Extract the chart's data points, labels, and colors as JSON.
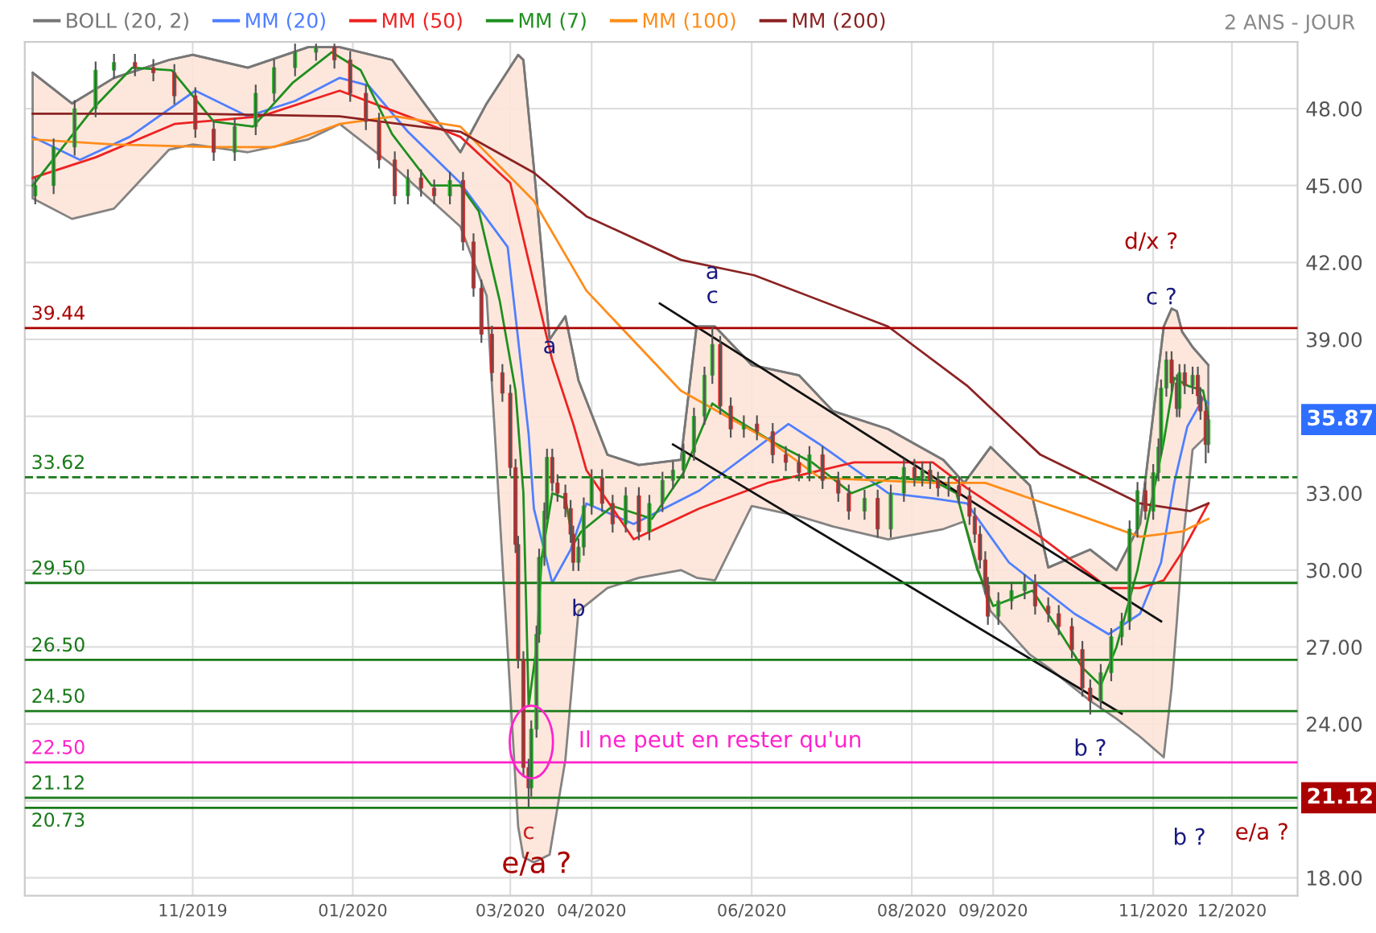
{
  "chart_data": {
    "type": "candlestick",
    "x": [
      "2019-09-02",
      "2019-09-09",
      "2019-09-17",
      "2019-09-25",
      "2019-10-02",
      "2019-10-10",
      "2019-10-17",
      "2019-10-25",
      "2019-11-02",
      "2019-11-09",
      "2019-11-17",
      "2019-11-25",
      "2019-12-02",
      "2019-12-10",
      "2019-12-18",
      "2019-12-25",
      "2019-12-31",
      "2020-01-06",
      "2020-01-11",
      "2020-01-17",
      "2020-01-22",
      "2020-01-27",
      "2020-02-01",
      "2020-02-07",
      "2020-02-12",
      "2020-02-16",
      "2020-02-19",
      "2020-02-23",
      "2020-02-27",
      "2020-03-01",
      "2020-03-03",
      "2020-03-04",
      "2020-03-06",
      "2020-03-08",
      "2020-03-09",
      "2020-03-11",
      "2020-03-12",
      "2020-03-14",
      "2020-03-15",
      "2020-03-17",
      "2020-03-19",
      "2020-03-22",
      "2020-03-24",
      "2020-03-25",
      "2020-03-27",
      "2020-03-29",
      "2020-04-01",
      "2020-04-05",
      "2020-04-09",
      "2020-04-14",
      "2020-04-19",
      "2020-04-23",
      "2020-04-28",
      "2020-05-02",
      "2020-05-06",
      "2020-05-10",
      "2020-05-14",
      "2020-05-17",
      "2020-05-20",
      "2020-05-24",
      "2020-05-29",
      "2020-06-03",
      "2020-06-09",
      "2020-06-14",
      "2020-06-19",
      "2020-06-23",
      "2020-06-28",
      "2020-07-04",
      "2020-07-08",
      "2020-07-14",
      "2020-07-19",
      "2020-07-24",
      "2020-07-29",
      "2020-08-02",
      "2020-08-05",
      "2020-08-08",
      "2020-08-11",
      "2020-08-15",
      "2020-08-19",
      "2020-08-23",
      "2020-08-25",
      "2020-08-27",
      "2020-08-29",
      "2020-08-30",
      "2020-09-03",
      "2020-09-08",
      "2020-09-13",
      "2020-09-17",
      "2020-09-22",
      "2020-09-26",
      "2020-10-01",
      "2020-10-05",
      "2020-10-08",
      "2020-10-12",
      "2020-10-16",
      "2020-10-20",
      "2020-10-23",
      "2020-10-26",
      "2020-10-29",
      "2020-11-01",
      "2020-11-03",
      "2020-11-04",
      "2020-11-06",
      "2020-11-08",
      "2020-11-10",
      "2020-11-11",
      "2020-11-13",
      "2020-11-16",
      "2020-11-18",
      "2020-11-19",
      "2020-11-21",
      "2020-11-22"
    ],
    "ohlc": [
      [
        44.6,
        45.3,
        44.3,
        45.0
      ],
      [
        45.0,
        46.8,
        44.7,
        46.5
      ],
      [
        46.5,
        48.3,
        46.2,
        48.0
      ],
      [
        48.0,
        49.8,
        47.7,
        49.5
      ],
      [
        49.5,
        50.1,
        49.2,
        49.8
      ],
      [
        49.8,
        50.1,
        49.3,
        49.6
      ],
      [
        49.6,
        49.9,
        49.1,
        49.4
      ],
      [
        49.4,
        49.7,
        48.2,
        48.5
      ],
      [
        48.5,
        48.8,
        46.9,
        47.2
      ],
      [
        47.2,
        47.5,
        46.0,
        46.3
      ],
      [
        46.3,
        47.6,
        46.0,
        47.3
      ],
      [
        47.3,
        48.9,
        47.0,
        48.6
      ],
      [
        48.6,
        49.9,
        48.3,
        49.6
      ],
      [
        49.6,
        50.5,
        49.3,
        50.2
      ],
      [
        50.2,
        50.5,
        49.9,
        50.4
      ],
      [
        50.4,
        50.5,
        49.6,
        49.9
      ],
      [
        49.9,
        50.2,
        48.3,
        48.6
      ],
      [
        48.6,
        48.9,
        47.2,
        47.5
      ],
      [
        47.5,
        47.8,
        45.7,
        46.0
      ],
      [
        46.0,
        46.3,
        44.3,
        44.6
      ],
      [
        44.6,
        45.6,
        44.3,
        45.3
      ],
      [
        45.3,
        45.6,
        44.6,
        44.9
      ],
      [
        44.9,
        45.2,
        44.3,
        44.6
      ],
      [
        44.6,
        45.5,
        44.3,
        45.2
      ],
      [
        45.2,
        45.5,
        42.5,
        42.8
      ],
      [
        42.8,
        43.1,
        40.7,
        41.0
      ],
      [
        41.0,
        41.3,
        38.9,
        39.2
      ],
      [
        39.2,
        39.5,
        37.4,
        37.7
      ],
      [
        37.7,
        38.0,
        36.6,
        36.9
      ],
      [
        36.9,
        37.2,
        33.7,
        34.0
      ],
      [
        34.0,
        34.3,
        30.7,
        31.0
      ],
      [
        31.0,
        31.3,
        26.2,
        26.5
      ],
      [
        26.5,
        26.8,
        22.0,
        22.3
      ],
      [
        22.3,
        22.6,
        20.8,
        21.5
      ],
      [
        21.5,
        24.1,
        21.2,
        23.8
      ],
      [
        23.8,
        27.8,
        23.5,
        27.5
      ],
      [
        27.5,
        30.8,
        27.2,
        30.5
      ],
      [
        30.5,
        32.6,
        30.2,
        32.3
      ],
      [
        32.3,
        34.7,
        32.0,
        34.4
      ],
      [
        34.4,
        34.7,
        33.1,
        33.4
      ],
      [
        33.4,
        33.7,
        32.7,
        33.0
      ],
      [
        33.0,
        33.3,
        32.1,
        32.4
      ],
      [
        32.4,
        32.7,
        31.1,
        31.4
      ],
      [
        31.4,
        31.7,
        30.0,
        30.3
      ],
      [
        30.3,
        31.2,
        30.0,
        30.9
      ],
      [
        30.9,
        32.8,
        30.6,
        32.5
      ],
      [
        32.5,
        33.9,
        32.2,
        33.6
      ],
      [
        33.6,
        33.9,
        32.3,
        32.6
      ],
      [
        32.6,
        32.9,
        31.5,
        31.8
      ],
      [
        31.8,
        33.2,
        31.5,
        32.9
      ],
      [
        32.9,
        33.2,
        31.2,
        31.5
      ],
      [
        31.5,
        32.9,
        31.2,
        32.6
      ],
      [
        32.6,
        33.8,
        32.3,
        33.5
      ],
      [
        33.5,
        34.2,
        33.2,
        33.9
      ],
      [
        33.9,
        34.9,
        33.6,
        34.6
      ],
      [
        34.6,
        36.3,
        34.3,
        36.0
      ],
      [
        36.0,
        37.9,
        35.7,
        37.6
      ],
      [
        37.6,
        39.44,
        37.3,
        38.8
      ],
      [
        38.8,
        39.1,
        36.1,
        36.4
      ],
      [
        36.4,
        36.7,
        35.2,
        35.5
      ],
      [
        35.5,
        36.0,
        35.2,
        35.7
      ],
      [
        35.7,
        36.0,
        35.1,
        35.4
      ],
      [
        35.4,
        35.7,
        34.2,
        34.5
      ],
      [
        34.5,
        34.8,
        33.9,
        34.2
      ],
      [
        34.2,
        34.5,
        33.5,
        33.8
      ],
      [
        33.8,
        34.8,
        33.5,
        34.5
      ],
      [
        34.5,
        34.8,
        33.2,
        33.5
      ],
      [
        33.5,
        33.8,
        32.7,
        33.0
      ],
      [
        33.0,
        33.3,
        32.0,
        32.3
      ],
      [
        32.3,
        33.1,
        32.0,
        32.8
      ],
      [
        32.8,
        33.1,
        31.3,
        31.6
      ],
      [
        31.6,
        33.3,
        31.3,
        33.0
      ],
      [
        33.0,
        34.3,
        32.7,
        34.0
      ],
      [
        34.0,
        34.3,
        33.3,
        33.6
      ],
      [
        33.6,
        34.2,
        33.3,
        33.9
      ],
      [
        33.9,
        34.2,
        33.2,
        33.5
      ],
      [
        33.5,
        33.8,
        32.9,
        33.2
      ],
      [
        33.2,
        33.6,
        32.9,
        33.3
      ],
      [
        33.3,
        33.6,
        32.6,
        32.9
      ],
      [
        32.9,
        33.2,
        31.8,
        32.1
      ],
      [
        32.1,
        32.4,
        31.1,
        31.4
      ],
      [
        31.4,
        31.7,
        30.1,
        30.4
      ],
      [
        30.4,
        30.7,
        29.1,
        29.4
      ],
      [
        29.4,
        29.7,
        27.9,
        28.2
      ],
      [
        28.2,
        29.1,
        27.9,
        28.8
      ],
      [
        28.8,
        29.5,
        28.5,
        29.2
      ],
      [
        29.2,
        29.8,
        28.9,
        29.5
      ],
      [
        29.5,
        29.8,
        28.3,
        28.6
      ],
      [
        28.6,
        28.9,
        28.0,
        28.3
      ],
      [
        28.3,
        28.6,
        27.5,
        27.8
      ],
      [
        27.8,
        28.1,
        26.6,
        26.9
      ],
      [
        26.9,
        27.2,
        25.1,
        25.4
      ],
      [
        25.4,
        25.7,
        24.4,
        24.9
      ],
      [
        24.9,
        26.3,
        24.6,
        26.0
      ],
      [
        26.0,
        27.7,
        25.7,
        27.4
      ],
      [
        27.4,
        28.3,
        27.1,
        28.0
      ],
      [
        28.0,
        31.9,
        27.7,
        31.6
      ],
      [
        31.6,
        33.4,
        31.3,
        33.1
      ],
      [
        33.1,
        33.4,
        32.0,
        32.3
      ],
      [
        32.3,
        34.1,
        32.0,
        33.8
      ],
      [
        33.8,
        35.1,
        33.5,
        34.8
      ],
      [
        34.8,
        37.4,
        34.5,
        37.1
      ],
      [
        37.1,
        38.5,
        36.8,
        38.2
      ],
      [
        38.2,
        38.5,
        37.0,
        37.3
      ],
      [
        37.3,
        37.6,
        36.0,
        36.3
      ],
      [
        36.3,
        38.0,
        36.0,
        37.7
      ],
      [
        37.7,
        38.0,
        36.9,
        37.2
      ],
      [
        37.2,
        37.9,
        36.9,
        37.6
      ],
      [
        37.6,
        37.9,
        36.5,
        36.8
      ],
      [
        36.8,
        37.1,
        35.9,
        36.2
      ],
      [
        36.2,
        36.5,
        34.2,
        34.9
      ],
      [
        34.9,
        36.0,
        34.6,
        35.87
      ]
    ],
    "series": [
      {
        "name": "BOLL (20, 2)",
        "type": "line",
        "color": "#777777",
        "x": [
          "2019-09-01",
          "2019-09-16",
          "2019-10-02",
          "2019-10-23",
          "2019-11-01",
          "2019-11-22",
          "2019-12-15",
          "2019-12-27",
          "2020-01-16",
          "2020-02-11",
          "2020-02-21",
          "2020-03-04",
          "2020-03-06",
          "2020-03-10",
          "2020-03-16",
          "2020-03-22",
          "2020-03-27",
          "2020-04-07",
          "2020-04-19",
          "2020-05-05",
          "2020-05-11",
          "2020-05-18",
          "2020-06-01",
          "2020-06-19",
          "2020-07-02",
          "2020-07-23",
          "2020-08-13",
          "2020-08-21",
          "2020-08-31",
          "2020-09-15",
          "2020-09-22",
          "2020-10-08",
          "2020-10-18",
          "2020-10-27",
          "2020-11-05",
          "2020-11-08",
          "2020-11-10",
          "2020-11-12",
          "2020-11-16",
          "2020-11-22"
        ],
        "values": [
          49.4,
          48.2,
          49.2,
          49.9,
          50.1,
          49.6,
          50.4,
          50.4,
          49.9,
          46.3,
          48.2,
          50.1,
          49.9,
          45.7,
          39.0,
          39.9,
          37.4,
          34.5,
          34.1,
          34.3,
          39.5,
          39.5,
          38.0,
          37.6,
          36.2,
          35.5,
          34.3,
          33.4,
          34.8,
          33.3,
          30.1,
          30.8,
          30.0,
          31.8,
          39.5,
          40.2,
          40.1,
          39.3,
          38.7,
          38.0
        ],
        "upper": [
          49.4,
          48.2,
          49.2,
          49.9,
          50.1,
          49.6,
          50.4,
          50.4,
          49.9,
          46.3,
          48.2,
          50.1,
          49.9,
          45.7,
          39.0,
          39.9,
          37.4,
          34.5,
          34.1,
          34.3,
          39.5,
          39.5,
          38.0,
          37.6,
          36.2,
          35.5,
          34.3,
          33.4,
          34.8,
          33.3,
          30.1,
          30.8,
          30.0,
          31.8,
          39.5,
          40.2,
          40.1,
          39.3,
          38.7,
          38.0
        ],
        "lower": [
          44.5,
          43.7,
          44.1,
          46.4,
          46.6,
          46.3,
          46.8,
          47.4,
          45.8,
          43.4,
          40.7,
          20.0,
          18.8,
          18.6,
          18.9,
          22.6,
          28.4,
          29.3,
          29.7,
          30.0,
          29.7,
          29.6,
          32.5,
          32.1,
          31.7,
          31.2,
          31.6,
          31.9,
          28.4,
          26.7,
          26.2,
          24.9,
          24.2,
          23.5,
          22.7,
          25.4,
          28.0,
          30.8,
          34.7,
          35.3
        ]
      },
      {
        "name": "MM (20)",
        "type": "line",
        "color": "#4f7fff",
        "x": [
          "2019-09-01",
          "2019-09-19",
          "2019-10-08",
          "2019-11-02",
          "2019-11-22",
          "2019-12-10",
          "2019-12-27",
          "2020-01-07",
          "2020-01-22",
          "2020-02-11",
          "2020-02-29",
          "2020-03-04",
          "2020-03-08",
          "2020-03-10",
          "2020-03-17",
          "2020-03-24",
          "2020-03-30",
          "2020-04-17",
          "2020-05-12",
          "2020-06-15",
          "2020-06-27",
          "2020-07-23",
          "2020-08-09",
          "2020-08-22",
          "2020-09-07",
          "2020-10-02",
          "2020-10-15",
          "2020-10-27",
          "2020-11-04",
          "2020-11-09",
          "2020-11-14",
          "2020-11-20",
          "2020-11-22"
        ],
        "values": [
          46.9,
          46.0,
          46.9,
          48.7,
          47.7,
          48.3,
          49.2,
          48.9,
          47.1,
          45.1,
          42.6,
          39.0,
          35.3,
          32.4,
          29.5,
          30.8,
          32.6,
          31.8,
          33.1,
          35.7,
          34.9,
          33.0,
          32.8,
          32.6,
          30.3,
          28.3,
          27.5,
          28.3,
          30.3,
          33.4,
          35.6,
          36.7,
          36.5
        ]
      },
      {
        "name": "MM (50)",
        "type": "line",
        "color": "#ee2222",
        "x": [
          "2019-09-01",
          "2019-09-25",
          "2019-10-25",
          "2019-11-27",
          "2019-12-27",
          "2020-01-22",
          "2020-02-11",
          "2020-03-01",
          "2020-03-10",
          "2020-03-17",
          "2020-03-25",
          "2020-03-30",
          "2020-04-17",
          "2020-05-12",
          "2020-06-07",
          "2020-07-10",
          "2020-08-09",
          "2020-08-22",
          "2020-09-19",
          "2020-10-15",
          "2020-10-27",
          "2020-11-05",
          "2020-11-12",
          "2020-11-22"
        ],
        "values": [
          45.3,
          46.1,
          47.4,
          47.7,
          48.7,
          47.7,
          46.9,
          45.1,
          41.2,
          38.2,
          35.7,
          33.9,
          31.2,
          32.4,
          33.4,
          34.2,
          34.2,
          33.2,
          31.3,
          29.3,
          29.3,
          29.6,
          30.7,
          32.6
        ]
      },
      {
        "name": "MM (7)",
        "type": "line",
        "color": "#1f8f1f",
        "x": [
          "2019-09-01",
          "2019-09-24",
          "2019-10-09",
          "2019-10-24",
          "2019-11-09",
          "2019-11-24",
          "2019-12-09",
          "2019-12-24",
          "2020-01-04",
          "2020-01-16",
          "2020-01-31",
          "2020-02-11",
          "2020-02-18",
          "2020-02-26",
          "2020-03-03",
          "2020-03-06",
          "2020-03-08",
          "2020-03-11",
          "2020-03-13",
          "2020-03-17",
          "2020-03-22",
          "2020-03-25",
          "2020-03-28",
          "2020-04-09",
          "2020-04-24",
          "2020-05-06",
          "2020-05-17",
          "2020-05-24",
          "2020-06-09",
          "2020-06-24",
          "2020-07-09",
          "2020-07-24",
          "2020-08-09",
          "2020-08-18",
          "2020-08-26",
          "2020-09-01",
          "2020-09-16",
          "2020-09-27",
          "2020-10-05",
          "2020-10-12",
          "2020-10-18",
          "2020-10-26",
          "2020-11-01",
          "2020-11-05",
          "2020-11-09",
          "2020-11-14",
          "2020-11-20",
          "2020-11-22"
        ],
        "values": [
          45.0,
          48.0,
          49.6,
          49.5,
          47.5,
          47.3,
          49.0,
          50.2,
          49.5,
          47.0,
          45.0,
          45.0,
          44.0,
          40.5,
          37.0,
          33.0,
          24.7,
          27.0,
          30.5,
          33.0,
          32.8,
          31.0,
          31.5,
          32.5,
          32.0,
          33.8,
          36.5,
          36.0,
          35.0,
          34.2,
          33.0,
          33.6,
          33.5,
          33.0,
          30.0,
          28.6,
          29.2,
          27.5,
          26.2,
          25.5,
          27.0,
          30.0,
          33.0,
          35.0,
          37.5,
          37.2,
          37.0,
          36.0
        ]
      },
      {
        "name": "MM (100)",
        "type": "line",
        "color": "#ff8c1a",
        "x": [
          "2019-09-01",
          "2019-10-02",
          "2019-11-09",
          "2019-12-02",
          "2019-12-27",
          "2020-01-17",
          "2020-02-11",
          "2020-03-10",
          "2020-03-30",
          "2020-05-05",
          "2020-06-07",
          "2020-06-27",
          "2020-08-09",
          "2020-08-29",
          "2020-10-02",
          "2020-10-27",
          "2020-11-12",
          "2020-11-22"
        ],
        "values": [
          46.8,
          46.6,
          46.5,
          46.5,
          47.4,
          47.7,
          47.3,
          44.4,
          40.9,
          37.0,
          35.1,
          33.6,
          33.4,
          33.4,
          32.2,
          31.3,
          31.5,
          32.0
        ]
      },
      {
        "name": "MM (200)",
        "type": "line",
        "color": "#8b2323",
        "x": [
          "2019-09-01",
          "2019-11-01",
          "2019-12-27",
          "2020-02-11",
          "2020-03-10",
          "2020-03-30",
          "2020-05-05",
          "2020-06-02",
          "2020-07-23",
          "2020-08-22",
          "2020-09-19",
          "2020-10-27",
          "2020-11-15",
          "2020-11-22"
        ],
        "values": [
          47.8,
          47.8,
          47.7,
          47.1,
          45.5,
          43.8,
          42.1,
          41.5,
          39.5,
          37.2,
          34.5,
          32.6,
          32.3,
          32.6
        ]
      },
      {
        "type": "line",
        "color": "#111111",
        "x": [
          "2020-04-27",
          "2020-11-04"
        ],
        "values": [
          40.4,
          28.0
        ]
      },
      {
        "type": "line",
        "color": "#111111",
        "x": [
          "2020-05-02",
          "2020-10-20"
        ],
        "values": [
          34.9,
          24.4
        ]
      }
    ],
    "ref_lines": [
      {
        "axis": "y",
        "value": 39.44,
        "label": "39.44",
        "color": "#aa0000"
      },
      {
        "axis": "y",
        "value": 33.62,
        "label": "33.62",
        "color": "#1a7a1a",
        "line_style": "dashed"
      },
      {
        "axis": "y",
        "value": 29.5,
        "label": "29.50",
        "color": "#1a7a1a"
      },
      {
        "axis": "y",
        "value": 26.5,
        "label": "26.50",
        "color": "#1a7a1a"
      },
      {
        "axis": "y",
        "value": 24.5,
        "label": "24.50",
        "color": "#1a7a1a"
      },
      {
        "axis": "y",
        "value": 22.5,
        "label": "22.50",
        "color": "#ff22cc"
      },
      {
        "axis": "y",
        "value": 21.12,
        "label": "21.12",
        "color": "#1a7a1a"
      },
      {
        "axis": "y",
        "value": 20.73,
        "label": "20.73",
        "color": "#1a7a1a"
      }
    ],
    "annotations": [
      "2 ANS - JOUR",
      "35.87",
      "21.12",
      {
        "text": "a",
        "x": "2020-03-16",
        "y": 38.7
      },
      "b",
      {
        "text": "a",
        "x": "2020-05-17",
        "y": 41.6
      },
      {
        "text": "c",
        "x": "2020-05-17",
        "y": 39.44
      },
      {
        "text": "c",
        "x": "2020-03-08",
        "y": 20.8
      },
      {
        "text": "e/a ?",
        "x": "2020-03-11",
        "y": 18.5
      },
      "Il ne peut en rester qu'un",
      "d/x ?",
      "c ?",
      {
        "text": "b ?",
        "x": "2020-10-08",
        "y": 24.4
      },
      "b ?",
      "e/a ?"
    ],
    "xlim": [
      "2019-08-29",
      "2020-12-26"
    ],
    "xticks": [
      {
        "value": "2019-11-01",
        "label": "11/2019"
      },
      {
        "value": "2020-01-01",
        "label": "01/2020"
      },
      {
        "value": "2020-03-01",
        "label": "03/2020"
      },
      {
        "value": "2020-04-01",
        "label": "04/2020"
      },
      {
        "value": "2020-06-01",
        "label": "06/2020"
      },
      {
        "value": "2020-08-01",
        "label": "08/2020"
      },
      {
        "value": "2020-09-01",
        "label": "09/2020"
      },
      {
        "value": "2020-11-01",
        "label": "11/2020"
      },
      {
        "value": "2020-12-01",
        "label": "12/2020"
      }
    ],
    "ylim": [
      17.3,
      50.6
    ],
    "yticks": [
      {
        "value": 18,
        "label": "18.00"
      },
      {
        "value": 21,
        "label": null
      },
      {
        "value": 24,
        "label": "24.00"
      },
      {
        "value": 27,
        "label": "27.00"
      },
      {
        "value": 30,
        "label": "30.00"
      },
      {
        "value": 33,
        "label": "33.00"
      },
      {
        "value": 36,
        "label": null
      },
      {
        "value": 39,
        "label": "39.00"
      },
      {
        "value": 42,
        "label": "42.00"
      },
      {
        "value": 45,
        "label": "45.00"
      },
      {
        "value": 48,
        "label": "48.00"
      }
    ],
    "grid": true,
    "legend": "top left"
  }
}
